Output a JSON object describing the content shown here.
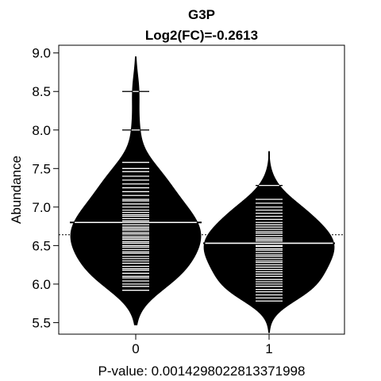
{
  "chart_data": {
    "type": "beanplot",
    "title": "G3P",
    "subtitle": "Log2(FC)=-0.2613",
    "ylabel": "Abundance",
    "xlabel": "P-value: 0.00142980228133719​98",
    "categories": [
      "0",
      "1"
    ],
    "ylim": [
      5.35,
      9.1
    ],
    "yticks": [
      5.5,
      6.0,
      6.5,
      7.0,
      7.5,
      8.0,
      8.5,
      9.0
    ],
    "ytick_labels": [
      "5.5",
      "6.0",
      "6.5",
      "7.0",
      "7.5",
      "8.0",
      "8.5",
      "9.0"
    ],
    "overall_mean": 6.64,
    "groups": [
      {
        "name": "0",
        "mean": 6.8,
        "density_min": 5.47,
        "density_max": 8.95,
        "points": [
          5.92,
          5.97,
          6.0,
          6.04,
          6.08,
          6.1,
          6.14,
          6.18,
          6.2,
          6.23,
          6.27,
          6.3,
          6.33,
          6.36,
          6.4,
          6.42,
          6.45,
          6.48,
          6.5,
          6.53,
          6.55,
          6.58,
          6.6,
          6.62,
          6.65,
          6.67,
          6.7,
          6.72,
          6.74,
          6.77,
          6.8,
          6.82,
          6.85,
          6.88,
          6.9,
          6.93,
          6.96,
          7.0,
          7.04,
          7.08,
          7.1,
          7.15,
          7.2,
          7.25,
          7.3,
          7.35,
          7.4,
          7.46,
          7.5,
          7.58,
          8.0,
          8.5
        ]
      },
      {
        "name": "1",
        "mean": 6.53,
        "density_min": 5.37,
        "density_max": 7.72,
        "points": [
          5.78,
          5.82,
          5.86,
          5.9,
          5.93,
          5.97,
          6.0,
          6.03,
          6.06,
          6.1,
          6.13,
          6.16,
          6.19,
          6.22,
          6.25,
          6.28,
          6.3,
          6.33,
          6.36,
          6.38,
          6.41,
          6.44,
          6.46,
          6.49,
          6.5,
          6.53,
          6.56,
          6.58,
          6.6,
          6.63,
          6.66,
          6.68,
          6.71,
          6.74,
          6.77,
          6.8,
          6.84,
          6.88,
          6.92,
          6.96,
          7.0,
          7.05,
          7.1,
          7.28
        ]
      }
    ]
  }
}
